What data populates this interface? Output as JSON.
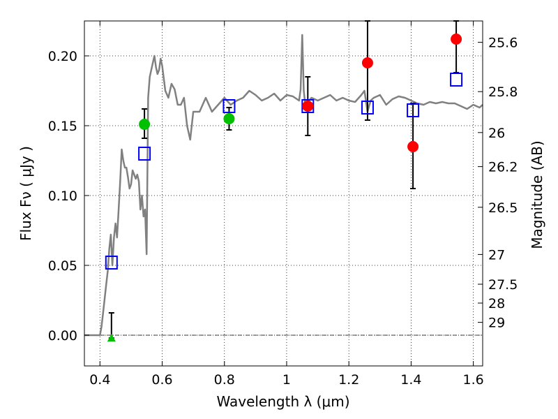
{
  "chart_data": {
    "type": "scatter",
    "xlabel": "Wavelength  λ (μm)",
    "ylabel": "Flux  Fν  ( μJy )",
    "ylabel_right": "Magnitude (AB)",
    "xlim": [
      0.35,
      1.63
    ],
    "ylim": [
      -0.022,
      0.225
    ],
    "grid": true,
    "x_ticks": [
      0.4,
      0.6,
      0.8,
      1.0,
      1.2,
      1.4,
      1.6
    ],
    "x_tick_labels": [
      "0.4",
      "0.6",
      "0.8",
      "1",
      "1.2",
      "1.4",
      "1.6"
    ],
    "y_ticks": [
      0.0,
      0.05,
      0.1,
      0.15,
      0.2
    ],
    "y_tick_labels": [
      "0.00",
      "0.05",
      "0.10",
      "0.15",
      "0.20"
    ],
    "mag_ticks": [
      {
        "label": "25.6",
        "flux": 0.2097
      },
      {
        "label": "25.8",
        "flux": 0.1744
      },
      {
        "label": "26",
        "flux": 0.1451
      },
      {
        "label": "26.2",
        "flux": 0.1207
      },
      {
        "label": "26.5",
        "flux": 0.0916
      },
      {
        "label": "27",
        "flux": 0.0578
      },
      {
        "label": "27.5",
        "flux": 0.0365
      },
      {
        "label": "28",
        "flux": 0.023
      },
      {
        "label": "29",
        "flux": 0.0092
      }
    ],
    "series": [
      {
        "kind": "line",
        "color": "#808080",
        "x": [
          0.35,
          0.4,
          0.405,
          0.41,
          0.415,
          0.42,
          0.425,
          0.43,
          0.435,
          0.44,
          0.445,
          0.45,
          0.455,
          0.46,
          0.465,
          0.47,
          0.475,
          0.48,
          0.485,
          0.49,
          0.495,
          0.5,
          0.505,
          0.51,
          0.515,
          0.52,
          0.525,
          0.53,
          0.535,
          0.54,
          0.545,
          0.55,
          0.555,
          0.56,
          0.565,
          0.57,
          0.575,
          0.58,
          0.585,
          0.59,
          0.595,
          0.6,
          0.61,
          0.62,
          0.63,
          0.64,
          0.65,
          0.66,
          0.67,
          0.68,
          0.69,
          0.7,
          0.72,
          0.74,
          0.76,
          0.78,
          0.8,
          0.82,
          0.84,
          0.86,
          0.88,
          0.9,
          0.92,
          0.94,
          0.96,
          0.98,
          1.0,
          1.02,
          1.04,
          1.045,
          1.05,
          1.055,
          1.06,
          1.08,
          1.1,
          1.12,
          1.14,
          1.16,
          1.18,
          1.2,
          1.22,
          1.24,
          1.25,
          1.26,
          1.27,
          1.28,
          1.3,
          1.32,
          1.34,
          1.36,
          1.38,
          1.4,
          1.42,
          1.44,
          1.46,
          1.48,
          1.5,
          1.52,
          1.54,
          1.56,
          1.58,
          1.6,
          1.62,
          1.63
        ],
        "y": [
          0.0,
          0.0,
          0.006,
          0.016,
          0.026,
          0.036,
          0.046,
          0.062,
          0.072,
          0.05,
          0.07,
          0.08,
          0.07,
          0.09,
          0.11,
          0.133,
          0.125,
          0.12,
          0.12,
          0.113,
          0.105,
          0.108,
          0.118,
          0.115,
          0.112,
          0.115,
          0.11,
          0.09,
          0.1,
          0.085,
          0.09,
          0.058,
          0.17,
          0.185,
          0.19,
          0.195,
          0.2,
          0.192,
          0.187,
          0.19,
          0.198,
          0.193,
          0.175,
          0.17,
          0.18,
          0.176,
          0.165,
          0.165,
          0.17,
          0.15,
          0.14,
          0.16,
          0.16,
          0.17,
          0.16,
          0.165,
          0.17,
          0.165,
          0.168,
          0.17,
          0.175,
          0.172,
          0.168,
          0.17,
          0.173,
          0.168,
          0.172,
          0.171,
          0.168,
          0.176,
          0.215,
          0.175,
          0.165,
          0.17,
          0.168,
          0.17,
          0.172,
          0.168,
          0.17,
          0.168,
          0.167,
          0.172,
          0.175,
          0.16,
          0.168,
          0.17,
          0.172,
          0.165,
          0.169,
          0.171,
          0.17,
          0.168,
          0.166,
          0.165,
          0.167,
          0.166,
          0.167,
          0.166,
          0.166,
          0.164,
          0.162,
          0.165,
          0.163,
          0.165
        ]
      },
      {
        "kind": "model_points",
        "marker": "open-square",
        "color": "#0000ff",
        "x": [
          0.437,
          0.543,
          0.815,
          1.068,
          1.26,
          1.406,
          1.545
        ],
        "y": [
          0.052,
          0.13,
          0.164,
          0.164,
          0.163,
          0.161,
          0.183
        ]
      },
      {
        "kind": "observed",
        "marker": "circle",
        "color": "#00c000",
        "x": [
          0.543,
          0.815
        ],
        "y": [
          0.151,
          0.155
        ],
        "yerr_low": [
          0.141,
          0.147
        ],
        "yerr_high": [
          0.162,
          0.163
        ]
      },
      {
        "kind": "observed",
        "marker": "circle",
        "color": "#ff0000",
        "x": [
          1.068,
          1.26,
          1.406,
          1.545
        ],
        "y": [
          0.164,
          0.195,
          0.135,
          0.212
        ],
        "yerr_low": [
          0.143,
          0.154,
          0.105,
          0.188
        ],
        "yerr_high": [
          0.185,
          0.225,
          0.166,
          0.225
        ]
      },
      {
        "kind": "upper_limit",
        "marker": "triangle",
        "color": "#00c000",
        "x": [
          0.437
        ],
        "y": [
          -0.002
        ],
        "yerr_low": [
          -0.002
        ],
        "yerr_high": [
          0.016
        ]
      }
    ],
    "zero_line": 0.0
  }
}
